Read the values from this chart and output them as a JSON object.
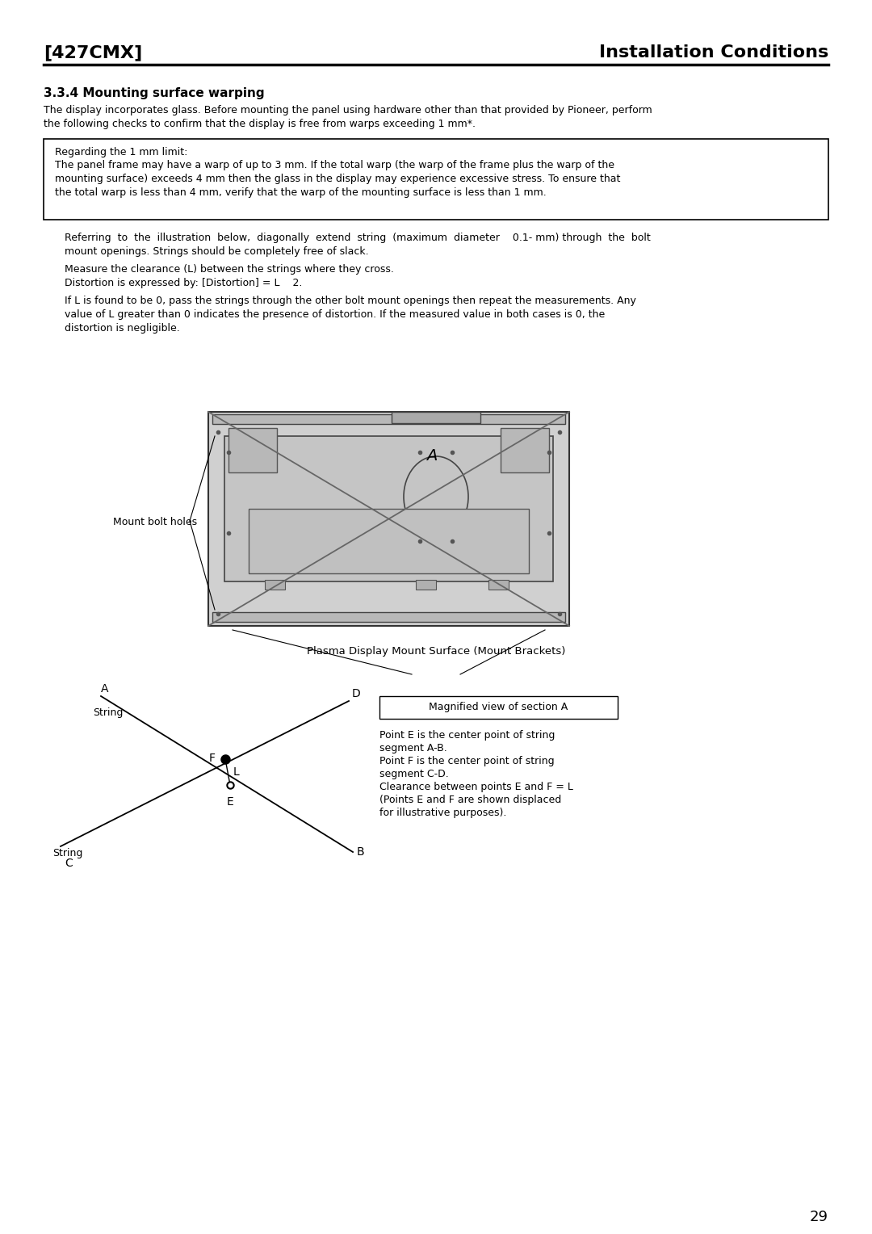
{
  "page_title_left": "[427CMX]",
  "page_title_right": "Installation Conditions",
  "section_title": "3.3.4 Mounting surface warping",
  "para1_line1": "The display incorporates glass. Before mounting the panel using hardware other than that provided by Pioneer, perform",
  "para1_line2": "the following checks to confirm that the display is free from warps exceeding 1 mm*.",
  "box_title": "Regarding the 1 mm limit:",
  "box_line1": "The panel frame may have a warp of up to 3 mm. If the total warp (the warp of the frame plus the warp of the",
  "box_line2": "mounting surface) exceeds 4 mm then the glass in the display may experience excessive stress. To ensure that",
  "box_line3": "the total warp is less than 4 mm, verify that the warp of the mounting surface is less than 1 mm.",
  "indent_line1a": "Referring  to  the  illustration  below,  diagonally  extend  string  (maximum  diameter    0.1- mm) through  the  bolt",
  "indent_line1b": "mount openings. Strings should be completely free of slack.",
  "indent_line2": "Measure the clearance (L) between the strings where they cross.",
  "indent_line3": "Distortion is expressed by: [Distortion] = L    2.",
  "indent_line4a": "If L is found to be 0, pass the strings through the other bolt mount openings then repeat the measurements. Any",
  "indent_line4b": "value of L greater than 0 indicates the presence of distortion. If the measured value in both cases is 0, the",
  "indent_line4c": "distortion is negligible.",
  "diagram_caption": "Plasma Display Mount Surface (Mount Brackets)",
  "mount_bolt_label": "Mount bolt holes",
  "magnified_box_title": "Magnified view of section A",
  "magnified_line1": "Point E is the center point of string",
  "magnified_line2": "segment A-B.",
  "magnified_line3": "Point F is the center point of string",
  "magnified_line4": "segment C-D.",
  "magnified_line5": "Clearance between points E and F = L",
  "magnified_line6": "(Points E and F are shown displaced",
  "magnified_line7": "for illustrative purposes).",
  "page_number": "29",
  "bg_color": "#ffffff",
  "text_color": "#000000"
}
